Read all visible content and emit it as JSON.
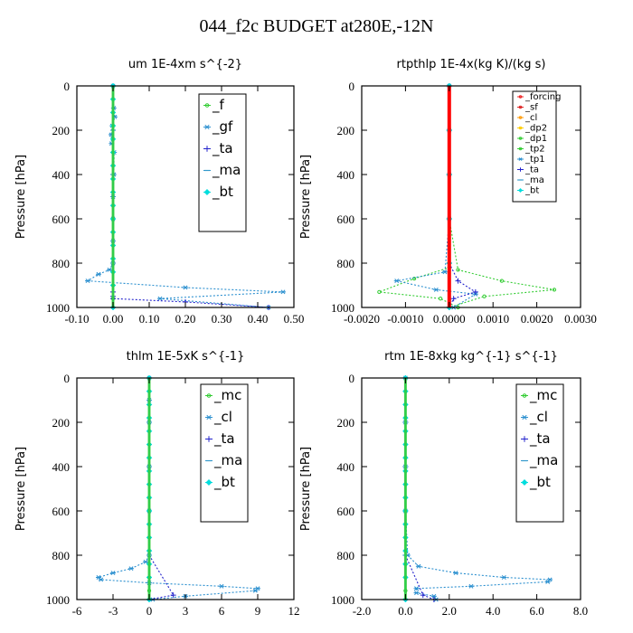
{
  "title": "044_f2c  BUDGET at280E,-12N",
  "colors": {
    "f": "#33cc33",
    "gf": "#2a8fcf",
    "ta": "#2222cc",
    "ma": "#3399cc",
    "bt": "#00dddd",
    "forcing": "#ee2222",
    "sf": "#dd2222",
    "cl": "#ff9900",
    "dp2": "#ffcc00",
    "dp1": "#33cc33",
    "tp2": "#33cc33",
    "tp1": "#2a8fcf",
    "mc": "#33cc33",
    "red": "#ff0000"
  },
  "chart_data": [
    {
      "type": "line",
      "title": "um   1E-4xm s^{-2}",
      "ylabel": "Pressure [hPa]",
      "xlim": [
        -0.1,
        0.5
      ],
      "ylim": [
        1000,
        0
      ],
      "xticks": [
        "-0.10",
        "0.00",
        "0.10",
        "0.20",
        "0.30",
        "0.40",
        "0.50"
      ],
      "yticks": [
        "0",
        "200",
        "400",
        "600",
        "800",
        "1000"
      ],
      "legend": "top-right",
      "series": [
        {
          "name": "_f",
          "color_key": "f",
          "marker": "circle",
          "x": [
            0,
            0,
            0,
            0,
            0,
            0,
            0,
            0,
            0,
            0,
            0,
            0,
            0,
            0,
            0,
            0,
            0,
            0
          ],
          "y": [
            0,
            60,
            120,
            180,
            240,
            300,
            360,
            420,
            480,
            540,
            600,
            660,
            720,
            780,
            840,
            900,
            960,
            1000
          ]
        },
        {
          "name": "_gf",
          "color_key": "gf",
          "marker": "star",
          "x": [
            0,
            0.002,
            0.005,
            -0.002,
            -0.005,
            -0.004,
            0.003,
            0.002,
            0,
            0,
            0,
            0,
            -0.01,
            -0.04,
            -0.07,
            0.2,
            0.47,
            0.13,
            0.43
          ],
          "y": [
            0,
            100,
            140,
            180,
            220,
            260,
            300,
            400,
            500,
            600,
            700,
            800,
            830,
            850,
            880,
            910,
            930,
            960,
            1000
          ]
        },
        {
          "name": "_ta",
          "color_key": "ta",
          "marker": "plus",
          "x": [
            0,
            0,
            0,
            0,
            0,
            0,
            0,
            0,
            0,
            0.2,
            0.43
          ],
          "y": [
            0,
            200,
            400,
            600,
            800,
            900,
            930,
            950,
            960,
            975,
            1000
          ]
        },
        {
          "name": "_ma",
          "color_key": "ma",
          "marker": "dash",
          "x": [
            0,
            0,
            0,
            0,
            0,
            0
          ],
          "y": [
            0,
            200,
            400,
            600,
            800,
            1000
          ]
        },
        {
          "name": "_bt",
          "color_key": "bt",
          "marker": "diamond",
          "x": [
            0,
            0,
            0,
            0,
            0,
            0,
            0,
            0,
            0,
            0,
            0,
            0,
            0,
            0,
            0,
            0,
            0
          ],
          "y": [
            0,
            60,
            120,
            180,
            240,
            300,
            360,
            420,
            480,
            540,
            600,
            660,
            720,
            780,
            840,
            900,
            1000
          ]
        }
      ]
    },
    {
      "type": "line",
      "title": "rtpthlp   1E-4x(kg K)/(kg s)",
      "ylabel": "Pressure [hPa]",
      "xlim": [
        -0.002,
        0.003
      ],
      "ylim": [
        1000,
        0
      ],
      "xticks": [
        "-0.0020",
        "-0.0010",
        "0.0000",
        "0.0010",
        "0.0020",
        "0.0030"
      ],
      "yticks": [
        "0",
        "200",
        "400",
        "600",
        "800",
        "1000"
      ],
      "legend": "top-right",
      "series": [
        {
          "name": "_forcing",
          "color_key": "forcing",
          "marker": "circle",
          "x": [
            0,
            0,
            0,
            0,
            0,
            0
          ],
          "y": [
            0,
            200,
            400,
            600,
            800,
            1000
          ]
        },
        {
          "name": "_sf",
          "color_key": "sf",
          "marker": "circle",
          "x": [
            0,
            0,
            0,
            0,
            0,
            0
          ],
          "y": [
            0,
            200,
            400,
            600,
            800,
            1000
          ]
        },
        {
          "name": "_cl",
          "color_key": "cl",
          "marker": "circle",
          "x": [
            0,
            0,
            0,
            0,
            0,
            0
          ],
          "y": [
            0,
            200,
            400,
            600,
            800,
            1000
          ]
        },
        {
          "name": "_dp2",
          "color_key": "dp2",
          "marker": "circle",
          "x": [
            0,
            0,
            0,
            0,
            0,
            0
          ],
          "y": [
            0,
            200,
            400,
            600,
            800,
            1000
          ]
        },
        {
          "name": "_dp1",
          "color_key": "dp1",
          "marker": "circle",
          "x": [
            0,
            0,
            0,
            0,
            0,
            -0.0008,
            -0.0016,
            -0.0002,
            0.0002
          ],
          "y": [
            0,
            200,
            400,
            600,
            820,
            870,
            930,
            960,
            1000
          ]
        },
        {
          "name": "_tp2",
          "color_key": "tp2",
          "marker": "circle",
          "x": [
            0,
            0,
            0,
            0,
            0.0002,
            0.0012,
            0.0024,
            0.0008,
            0
          ],
          "y": [
            0,
            200,
            400,
            600,
            830,
            880,
            920,
            950,
            1000
          ]
        },
        {
          "name": "_tp1",
          "color_key": "tp1",
          "marker": "star",
          "x": [
            0,
            0,
            0,
            0,
            -0.0001,
            -0.0012,
            -0.0003,
            0.0006,
            0.0001
          ],
          "y": [
            0,
            200,
            400,
            600,
            840,
            880,
            920,
            940,
            1000
          ]
        },
        {
          "name": "_ta",
          "color_key": "ta",
          "marker": "plus",
          "x": [
            0,
            0,
            0,
            0.0002,
            0.0006,
            0.0001,
            0
          ],
          "y": [
            0,
            400,
            800,
            880,
            930,
            960,
            1000
          ]
        },
        {
          "name": "_ma",
          "color_key": "ma",
          "marker": "dash",
          "x": [
            0,
            0,
            0,
            0,
            0,
            0
          ],
          "y": [
            0,
            200,
            400,
            600,
            800,
            1000
          ]
        },
        {
          "name": "_bt",
          "color_key": "bt",
          "marker": "diamond",
          "x": [
            0,
            0,
            0,
            0,
            0,
            0
          ],
          "y": [
            0,
            200,
            400,
            600,
            800,
            1000
          ]
        }
      ]
    },
    {
      "type": "line",
      "title": "thlm   1E-5xK s^{-1}",
      "ylabel": "Pressure [hPa]",
      "xlim": [
        -6,
        12
      ],
      "ylim": [
        1000,
        0
      ],
      "xticks": [
        "-6",
        "-3",
        "0",
        "3",
        "6",
        "9",
        "12"
      ],
      "yticks": [
        "0",
        "200",
        "400",
        "600",
        "800",
        "1000"
      ],
      "legend": "top-right",
      "series": [
        {
          "name": "_mc",
          "color_key": "mc",
          "marker": "circle",
          "x": [
            0,
            0,
            0,
            0,
            0,
            0,
            0,
            0,
            0,
            0,
            0,
            0,
            0,
            0,
            0,
            0,
            0,
            0
          ],
          "y": [
            0,
            60,
            120,
            180,
            240,
            300,
            360,
            420,
            480,
            540,
            600,
            660,
            720,
            780,
            840,
            900,
            960,
            1000
          ]
        },
        {
          "name": "_cl",
          "color_key": "gf",
          "marker": "star",
          "x": [
            0,
            0,
            0,
            0,
            0,
            0,
            -0.3,
            -1.5,
            -3.0,
            -4.2,
            -4.0,
            0,
            6.0,
            9.0,
            8.8,
            3.0,
            0.3
          ],
          "y": [
            0,
            100,
            200,
            400,
            600,
            800,
            830,
            860,
            880,
            900,
            910,
            925,
            940,
            950,
            960,
            985,
            1000
          ]
        },
        {
          "name": "_ta",
          "color_key": "ta",
          "marker": "plus",
          "x": [
            0,
            0,
            0,
            0,
            0,
            2.0,
            0
          ],
          "y": [
            0,
            200,
            400,
            600,
            800,
            980,
            1000
          ]
        },
        {
          "name": "_ma",
          "color_key": "ma",
          "marker": "dash",
          "x": [
            0,
            0,
            0,
            0,
            0,
            0
          ],
          "y": [
            0,
            200,
            400,
            600,
            800,
            1000
          ]
        },
        {
          "name": "_bt",
          "color_key": "bt",
          "marker": "diamond",
          "x": [
            0,
            0,
            0,
            0,
            0,
            0,
            0,
            0,
            0,
            0,
            0,
            0,
            0,
            0,
            0,
            0,
            0
          ],
          "y": [
            0,
            60,
            120,
            180,
            240,
            300,
            360,
            420,
            480,
            540,
            600,
            660,
            720,
            780,
            840,
            900,
            1000
          ]
        }
      ]
    },
    {
      "type": "line",
      "title": "rtm   1E-8xkg kg^{-1} s^{-1}",
      "ylabel": "Pressure [hPa]",
      "xlim": [
        -2.0,
        8.0
      ],
      "ylim": [
        1000,
        0
      ],
      "xticks": [
        "-2.0",
        "0.0",
        "2.0",
        "4.0",
        "6.0",
        "8.0"
      ],
      "yticks": [
        "0",
        "200",
        "400",
        "600",
        "800",
        "1000"
      ],
      "legend": "top-right",
      "series": [
        {
          "name": "_mc",
          "color_key": "mc",
          "marker": "circle",
          "x": [
            0,
            0,
            0,
            0,
            0,
            0,
            0,
            0,
            0,
            0,
            0,
            0,
            0,
            0,
            0,
            0,
            0,
            0
          ],
          "y": [
            0,
            60,
            120,
            180,
            240,
            300,
            360,
            420,
            480,
            540,
            600,
            660,
            720,
            780,
            840,
            900,
            960,
            1000
          ]
        },
        {
          "name": "_cl",
          "color_key": "gf",
          "marker": "star",
          "x": [
            0,
            0,
            0,
            0,
            0.1,
            0.6,
            2.3,
            4.5,
            6.6,
            6.5,
            3.0,
            0.5,
            0.5,
            1.3,
            1.4
          ],
          "y": [
            0,
            200,
            400,
            600,
            800,
            850,
            880,
            900,
            910,
            920,
            940,
            950,
            970,
            985,
            1000
          ]
        },
        {
          "name": "_ta",
          "color_key": "ta",
          "marker": "plus",
          "x": [
            0,
            0,
            0,
            0,
            0,
            0.8,
            1.3
          ],
          "y": [
            0,
            200,
            400,
            600,
            800,
            980,
            1000
          ]
        },
        {
          "name": "_ma",
          "color_key": "ma",
          "marker": "dash",
          "x": [
            0,
            0,
            0,
            0,
            0,
            0
          ],
          "y": [
            0,
            200,
            400,
            600,
            800,
            1000
          ]
        },
        {
          "name": "_bt",
          "color_key": "bt",
          "marker": "diamond",
          "x": [
            0,
            0,
            0,
            0,
            0,
            0,
            0,
            0,
            0,
            0,
            0,
            0,
            0,
            0,
            0,
            0,
            0
          ],
          "y": [
            0,
            60,
            120,
            180,
            240,
            300,
            360,
            420,
            480,
            540,
            600,
            660,
            720,
            780,
            840,
            900,
            1000
          ]
        }
      ]
    }
  ]
}
